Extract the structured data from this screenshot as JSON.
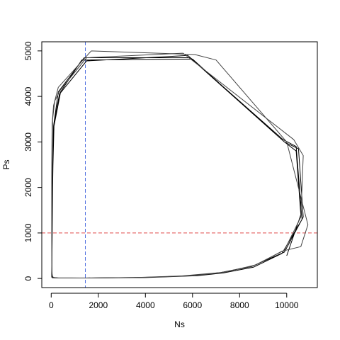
{
  "chart_data": {
    "type": "line",
    "title": "",
    "xlabel": "Ns",
    "ylabel": "Ps",
    "xlim": [
      -400,
      11300
    ],
    "ylim": [
      -200,
      5200
    ],
    "xticks": [
      0,
      2000,
      4000,
      6000,
      8000,
      10000
    ],
    "yticks": [
      0,
      1000,
      2000,
      3000,
      4000,
      5000
    ],
    "grid": false,
    "reference_lines": [
      {
        "orientation": "vertical",
        "value": 1450,
        "color": "#4f6fe0",
        "style": "dashed"
      },
      {
        "orientation": "horizontal",
        "value": 1000,
        "color": "#e04b4b",
        "style": "dashed"
      }
    ],
    "series": [
      {
        "color": "#000000",
        "x": [
          10000,
          10600,
          10400,
          9900,
          6000,
          1300,
          400,
          100,
          60,
          40,
          30,
          20,
          20,
          25,
          40,
          80,
          150,
          400,
          1500,
          4000,
          6200,
          7300,
          8600,
          9800,
          10650,
          10400,
          9850,
          5800,
          1500,
          350,
          120,
          60,
          40,
          30,
          30,
          40,
          60,
          100,
          250,
          1500,
          4200,
          6000,
          7200,
          8500,
          9900,
          10700,
          10500,
          9900,
          5900,
          1400,
          300,
          100,
          50,
          40,
          30,
          30,
          50,
          80,
          200
        ],
        "y": [
          500,
          1400,
          2800,
          3000,
          4820,
          4800,
          4100,
          3300,
          2000,
          800,
          300,
          100,
          50,
          30,
          20,
          15,
          12,
          10,
          10,
          20,
          60,
          120,
          250,
          550,
          1300,
          2900,
          3050,
          4900,
          4780,
          4050,
          3400,
          2200,
          900,
          350,
          110,
          50,
          30,
          20,
          15,
          10,
          25,
          65,
          130,
          260,
          580,
          1350,
          2850,
          3000,
          4850,
          4850,
          4100,
          3350,
          2100,
          850,
          320,
          100,
          40,
          25,
          15
        ]
      },
      {
        "color": "#444444",
        "x": [
          1700,
          6100,
          7000,
          10000,
          10900,
          10600,
          9800,
          8700,
          7300,
          6000,
          4000,
          1500,
          400,
          150,
          80,
          60,
          40,
          30,
          20,
          20,
          40,
          100,
          300,
          1700
        ],
        "y": [
          5000,
          4920,
          4800,
          3000,
          1180,
          700,
          600,
          300,
          130,
          60,
          25,
          10,
          10,
          12,
          20,
          40,
          100,
          300,
          900,
          2300,
          3400,
          3800,
          4200,
          5000
        ]
      },
      {
        "color": "#444444",
        "x": [
          1500,
          5600,
          10300,
          10700,
          10600,
          9900,
          8600,
          7200,
          5500,
          3500,
          1200,
          300,
          100,
          40,
          30,
          25,
          30,
          60,
          150,
          400,
          1500
        ],
        "y": [
          4850,
          4950,
          3050,
          2700,
          1350,
          620,
          280,
          130,
          55,
          20,
          10,
          12,
          20,
          60,
          250,
          1000,
          2400,
          3500,
          3900,
          4150,
          4850
        ]
      }
    ]
  }
}
